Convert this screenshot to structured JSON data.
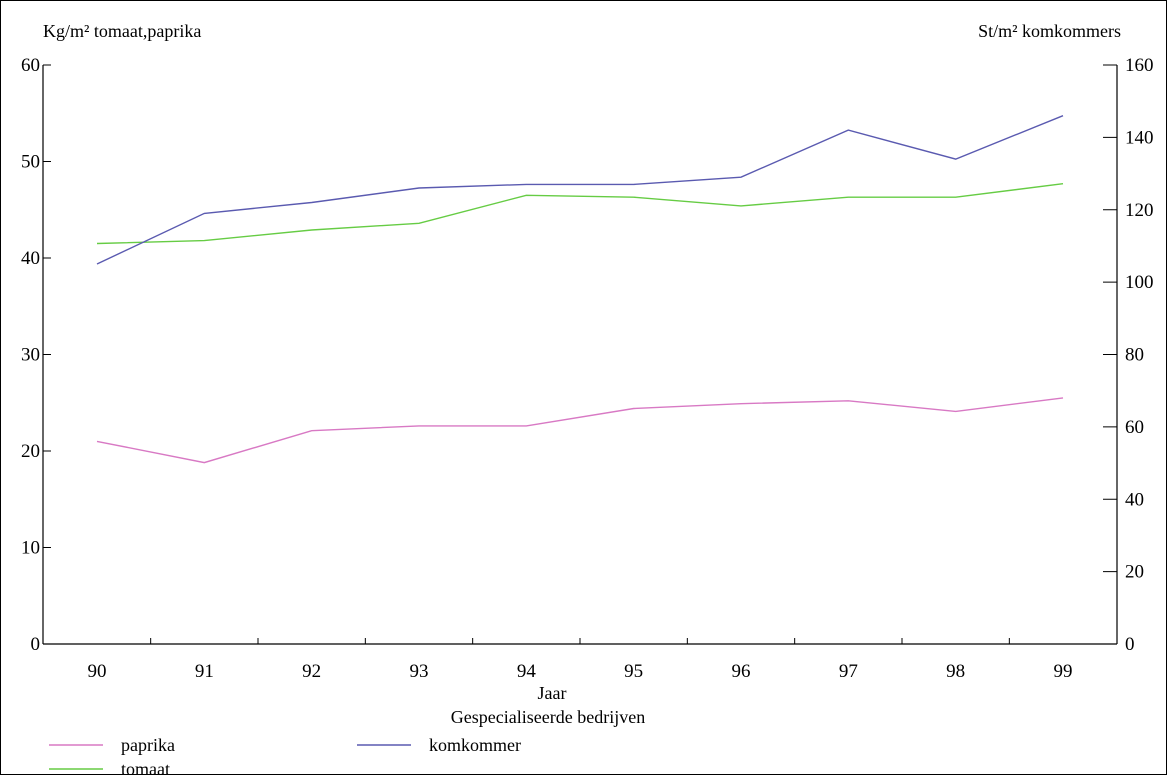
{
  "chart_data": {
    "type": "line",
    "left_axis_label": "Kg/m² tomaat,paprika",
    "right_axis_label": "St/m² komkommers",
    "xlabel": "Jaar",
    "subtitle": "Gespecialiseerde bedrijven",
    "categories": [
      "90",
      "91",
      "92",
      "93",
      "94",
      "95",
      "96",
      "97",
      "98",
      "99"
    ],
    "y_left": {
      "min": 0,
      "max": 60,
      "ticks": [
        "0",
        "10",
        "20",
        "30",
        "40",
        "50",
        "60"
      ]
    },
    "y_right": {
      "min": 0,
      "max": 160,
      "ticks": [
        "0",
        "20",
        "40",
        "60",
        "80",
        "100",
        "120",
        "140",
        "160"
      ]
    },
    "series": [
      {
        "name": "paprika",
        "axis": "left",
        "color": "#d879c4",
        "values": [
          21.0,
          18.8,
          22.1,
          22.6,
          22.6,
          24.4,
          24.9,
          25.2,
          24.1,
          25.5
        ]
      },
      {
        "name": "tomaat",
        "axis": "left",
        "color": "#66cc44",
        "values": [
          41.5,
          41.8,
          42.9,
          43.6,
          46.5,
          46.3,
          45.4,
          46.3,
          46.3,
          47.7
        ]
      },
      {
        "name": "komkommer",
        "axis": "right",
        "color": "#5a5ab0",
        "values": [
          105,
          119,
          122,
          126,
          127,
          127,
          129,
          142,
          134,
          146
        ]
      }
    ],
    "legend": "bottom-left",
    "grid": false
  }
}
